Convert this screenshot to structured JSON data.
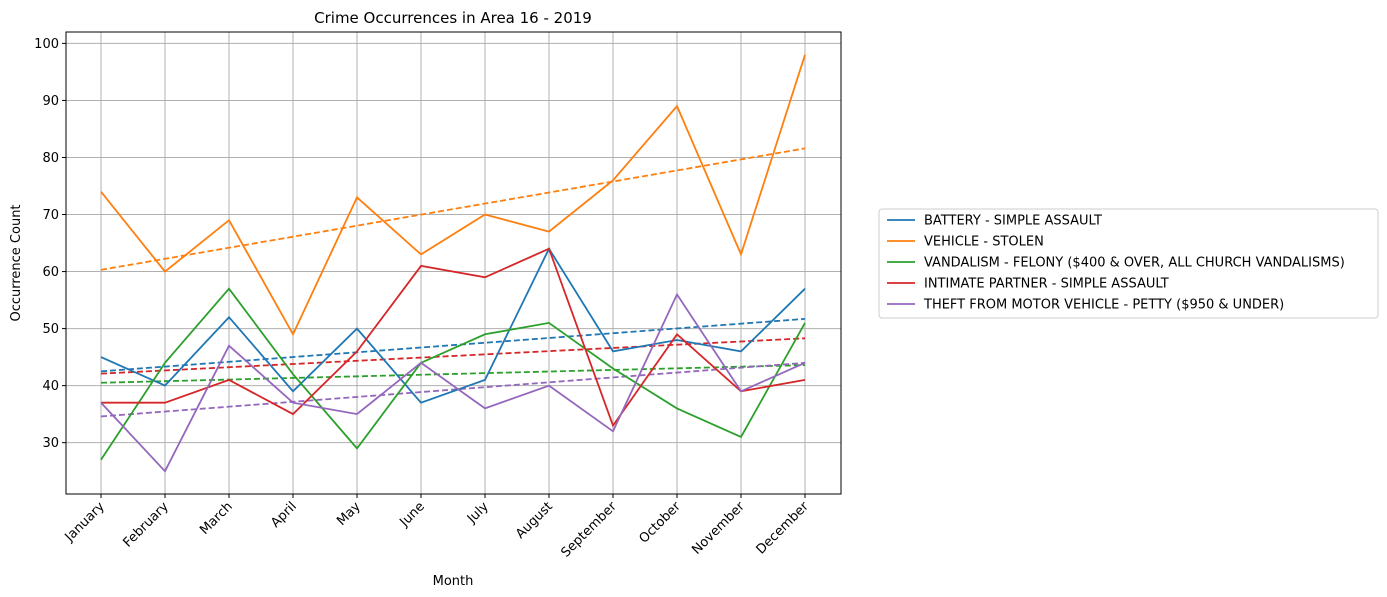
{
  "chart_data": {
    "type": "line",
    "title": "Crime Occurrences in Area 16 - 2019",
    "xlabel": "Month",
    "ylabel": "Occurrence Count",
    "categories": [
      "January",
      "February",
      "March",
      "April",
      "May",
      "June",
      "July",
      "August",
      "September",
      "October",
      "November",
      "December"
    ],
    "ylim": [
      21,
      102
    ],
    "yticks": [
      30,
      40,
      50,
      60,
      70,
      80,
      90,
      100
    ],
    "grid": true,
    "legend_position": "right-outside",
    "trend_lines": true,
    "series": [
      {
        "name": "BATTERY - SIMPLE ASSAULT",
        "color": "#1f77b4",
        "values": [
          45,
          40,
          52,
          39,
          50,
          37,
          41,
          64,
          46,
          48,
          46,
          57
        ],
        "trend": [
          42.5,
          51.7
        ]
      },
      {
        "name": "VEHICLE - STOLEN",
        "color": "#ff7f0e",
        "values": [
          74,
          60,
          69,
          49,
          73,
          63,
          70,
          67,
          76,
          89,
          63,
          98
        ],
        "trend": [
          60.3,
          81.6
        ]
      },
      {
        "name": "VANDALISM - FELONY ($400 & OVER, ALL CHURCH VANDALISMS)",
        "color": "#2ca02c",
        "values": [
          27,
          44,
          57,
          42,
          29,
          44,
          49,
          51,
          43,
          36,
          31,
          51
        ],
        "trend": [
          40.5,
          43.6
        ]
      },
      {
        "name": "INTIMATE PARTNER - SIMPLE ASSAULT",
        "color": "#d62728",
        "values": [
          37,
          37,
          41,
          35,
          46,
          61,
          59,
          64,
          33,
          49,
          39,
          41
        ],
        "trend": [
          42.1,
          48.3
        ]
      },
      {
        "name": "THEFT FROM MOTOR VEHICLE - PETTY ($950 & UNDER)",
        "color": "#9467bd",
        "values": [
          37,
          25,
          47,
          37,
          35,
          44,
          36,
          40,
          32,
          56,
          39,
          44
        ],
        "trend": [
          34.6,
          44.0
        ]
      }
    ]
  }
}
